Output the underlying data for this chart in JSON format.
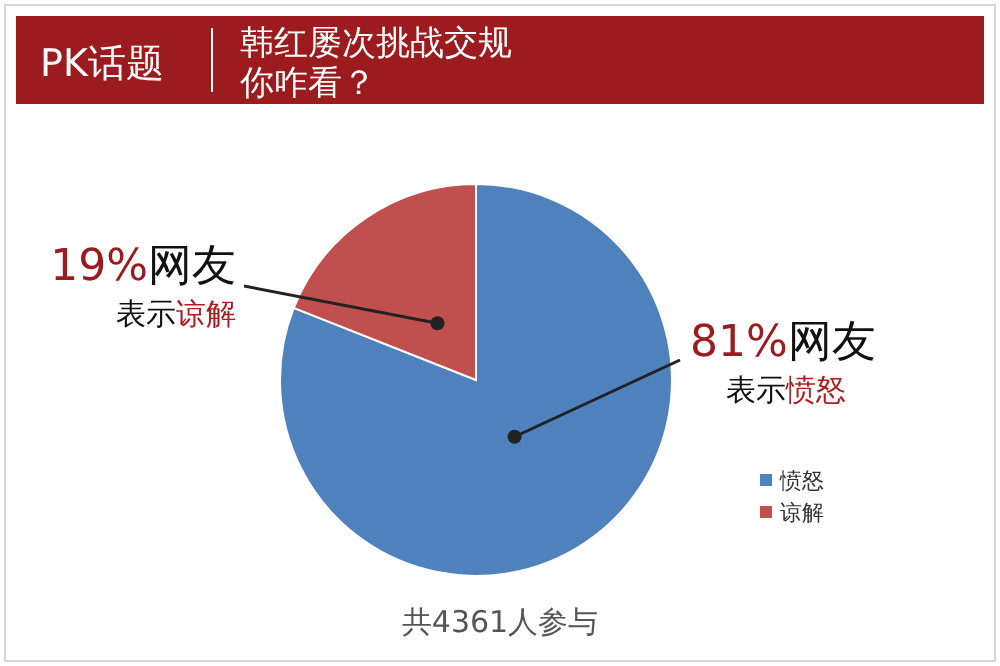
{
  "chart_data": {
    "type": "pie",
    "subtitle": "PK话题",
    "title": "韩红屡次挑战交规你咋看？",
    "categories": [
      "愤怒",
      "谅解"
    ],
    "values": [
      81,
      19
    ],
    "colors": [
      "#4f81bd",
      "#c0504d"
    ],
    "value_labels": [
      "81%网友表示愤怒",
      "19%网友表示谅解"
    ],
    "legend": "bottom right",
    "annotations": [
      "共4361人参与"
    ]
  }
}
